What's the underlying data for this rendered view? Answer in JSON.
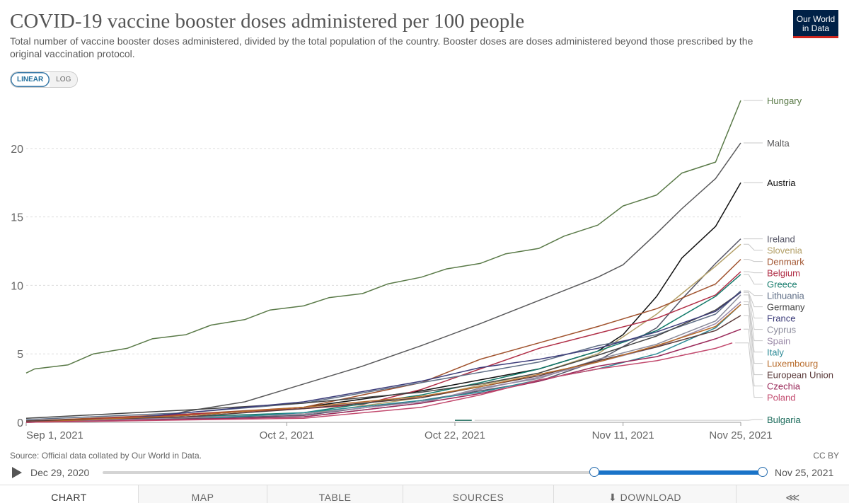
{
  "header": {
    "title": "COVID-19 vaccine booster doses administered per 100 people",
    "subtitle": "Total number of vaccine booster doses administered, divided by the total population of the country. Booster doses are doses administered beyond those prescribed by the original vaccination protocol.",
    "logo_line1": "Our World",
    "logo_line2": "in Data"
  },
  "scale_toggle": {
    "linear": "LINEAR",
    "log": "LOG",
    "selected": "LINEAR"
  },
  "footer": {
    "source": "Source: Official data collated by Our World in Data.",
    "license": "CC BY"
  },
  "timeline": {
    "start_date": "Dec 29, 2020",
    "end_date": "Nov 25, 2021",
    "range_start_fraction": 0.745,
    "range_end_fraction": 1.0
  },
  "tabs": [
    "CHART",
    "MAP",
    "TABLE",
    "SOURCES",
    "DOWNLOAD",
    ""
  ],
  "colors": {
    "accent": "#1a73c8",
    "logo_bg": "#002147",
    "logo_bar": "#ce261e"
  },
  "chart_data": {
    "type": "line",
    "xlabel": "",
    "ylabel": "",
    "x_ticks": [
      "Sep 1, 2021",
      "Oct 2, 2021",
      "Oct 22, 2021",
      "Nov 11, 2021",
      "Nov 25, 2021"
    ],
    "x_tick_days": [
      0,
      31,
      51,
      71,
      85
    ],
    "y_ticks": [
      0,
      5,
      10,
      15,
      20
    ],
    "ylim": [
      0,
      23.5
    ],
    "grid": "horizontal dashed",
    "legend": "right, labels at line ends",
    "series": [
      {
        "name": "Hungary",
        "color": "#5a7a48",
        "points": [
          [
            "Sep 1, 2021",
            3.6
          ],
          [
            "Sep 2, 2021",
            3.9
          ],
          [
            "Sep 6, 2021",
            4.2
          ],
          [
            "Sep 9, 2021",
            5.0
          ],
          [
            "Sep 13, 2021",
            5.4
          ],
          [
            "Sep 16, 2021",
            6.1
          ],
          [
            "Sep 20, 2021",
            6.4
          ],
          [
            "Sep 23, 2021",
            7.1
          ],
          [
            "Sep 27, 2021",
            7.5
          ],
          [
            "Sep 30, 2021",
            8.2
          ],
          [
            "Oct 4, 2021",
            8.5
          ],
          [
            "Oct 7, 2021",
            9.1
          ],
          [
            "Oct 11, 2021",
            9.4
          ],
          [
            "Oct 14, 2021",
            10.1
          ],
          [
            "Oct 18, 2021",
            10.6
          ],
          [
            "Oct 21, 2021",
            11.2
          ],
          [
            "Oct 25, 2021",
            11.6
          ],
          [
            "Oct 28, 2021",
            12.3
          ],
          [
            "Nov 1, 2021",
            12.7
          ],
          [
            "Nov 4, 2021",
            13.6
          ],
          [
            "Nov 8, 2021",
            14.4
          ],
          [
            "Nov 11, 2021",
            15.8
          ],
          [
            "Nov 15, 2021",
            16.6
          ],
          [
            "Nov 18, 2021",
            18.2
          ],
          [
            "Nov 22, 2021",
            19.0
          ],
          [
            "Nov 25, 2021",
            23.5
          ]
        ]
      },
      {
        "name": "Malta",
        "color": "#58585a",
        "points": [
          [
            "Sep 1, 2021",
            0.1
          ],
          [
            "Sep 16, 2021",
            0.3
          ],
          [
            "Sep 20, 2021",
            0.8
          ],
          [
            "Sep 27, 2021",
            1.5
          ],
          [
            "Oct 4, 2021",
            2.8
          ],
          [
            "Oct 11, 2021",
            4.1
          ],
          [
            "Oct 18, 2021",
            5.6
          ],
          [
            "Oct 25, 2021",
            7.2
          ],
          [
            "Nov 1, 2021",
            8.9
          ],
          [
            "Nov 8, 2021",
            10.6
          ],
          [
            "Nov 11, 2021",
            11.5
          ],
          [
            "Nov 15, 2021",
            13.8
          ],
          [
            "Nov 18, 2021",
            15.6
          ],
          [
            "Nov 22, 2021",
            17.8
          ],
          [
            "Nov 25, 2021",
            20.4
          ]
        ]
      },
      {
        "name": "Austria",
        "color": "#111111",
        "points": [
          [
            "Sep 1, 2021",
            0.1
          ],
          [
            "Sep 20, 2021",
            0.5
          ],
          [
            "Oct 4, 2021",
            1.1
          ],
          [
            "Oct 18, 2021",
            2.3
          ],
          [
            "Oct 25, 2021",
            3.1
          ],
          [
            "Nov 1, 2021",
            3.9
          ],
          [
            "Nov 8, 2021",
            5.2
          ],
          [
            "Nov 11, 2021",
            6.4
          ],
          [
            "Nov 15, 2021",
            9.2
          ],
          [
            "Nov 18, 2021",
            12.0
          ],
          [
            "Nov 22, 2021",
            14.3
          ],
          [
            "Nov 25, 2021",
            17.5
          ]
        ]
      },
      {
        "name": "Ireland",
        "color": "#555566",
        "points": [
          [
            "Sep 1, 2021",
            0.0
          ],
          [
            "Oct 4, 2021",
            0.5
          ],
          [
            "Oct 18, 2021",
            1.6
          ],
          [
            "Nov 1, 2021",
            3.0
          ],
          [
            "Nov 8, 2021",
            4.5
          ],
          [
            "Nov 15, 2021",
            6.9
          ],
          [
            "Nov 18, 2021",
            9.0
          ],
          [
            "Nov 22, 2021",
            11.6
          ],
          [
            "Nov 25, 2021",
            13.4
          ]
        ]
      },
      {
        "name": "Slovenia",
        "color": "#b3a068",
        "points": [
          [
            "Sep 1, 2021",
            0.0
          ],
          [
            "Oct 4, 2021",
            0.6
          ],
          [
            "Oct 18, 2021",
            1.8
          ],
          [
            "Nov 1, 2021",
            3.6
          ],
          [
            "Nov 8, 2021",
            5.0
          ],
          [
            "Nov 15, 2021",
            7.9
          ],
          [
            "Nov 18, 2021",
            9.4
          ],
          [
            "Nov 22, 2021",
            11.4
          ],
          [
            "Nov 25, 2021",
            13.0
          ]
        ]
      },
      {
        "name": "Denmark",
        "color": "#a0522d",
        "points": [
          [
            "Sep 1, 2021",
            0.1
          ],
          [
            "Sep 20, 2021",
            0.6
          ],
          [
            "Oct 4, 2021",
            1.1
          ],
          [
            "Oct 18, 2021",
            2.9
          ],
          [
            "Oct 25, 2021",
            4.6
          ],
          [
            "Nov 1, 2021",
            5.8
          ],
          [
            "Nov 8, 2021",
            7.0
          ],
          [
            "Nov 15, 2021",
            8.3
          ],
          [
            "Nov 22, 2021",
            10.1
          ],
          [
            "Nov 25, 2021",
            11.9
          ]
        ]
      },
      {
        "name": "Belgium",
        "color": "#b02e46",
        "points": [
          [
            "Sep 1, 2021",
            0.0
          ],
          [
            "Oct 4, 2021",
            1.0
          ],
          [
            "Oct 11, 2021",
            1.3
          ],
          [
            "Oct 18, 2021",
            2.4
          ],
          [
            "Oct 25, 2021",
            3.9
          ],
          [
            "Nov 1, 2021",
            5.4
          ],
          [
            "Nov 8, 2021",
            6.5
          ],
          [
            "Nov 15, 2021",
            7.6
          ],
          [
            "Nov 22, 2021",
            9.3
          ],
          [
            "Nov 25, 2021",
            11.0
          ]
        ]
      },
      {
        "name": "Greece",
        "color": "#127a6a",
        "points": [
          [
            "Sep 1, 2021",
            0.0
          ],
          [
            "Oct 4, 2021",
            0.7
          ],
          [
            "Oct 18, 2021",
            2.0
          ],
          [
            "Oct 25, 2021",
            2.9
          ],
          [
            "Nov 1, 2021",
            3.9
          ],
          [
            "Nov 8, 2021",
            5.2
          ],
          [
            "Nov 15, 2021",
            6.7
          ],
          [
            "Nov 22, 2021",
            9.2
          ],
          [
            "Nov 25, 2021",
            10.8
          ]
        ]
      },
      {
        "name": "Lithuania",
        "color": "#5f6e86",
        "points": [
          [
            "Sep 1, 2021",
            0.2
          ],
          [
            "Sep 20, 2021",
            0.7
          ],
          [
            "Oct 4, 2021",
            1.4
          ],
          [
            "Oct 18, 2021",
            2.9
          ],
          [
            "Nov 1, 2021",
            4.4
          ],
          [
            "Nov 8, 2021",
            5.6
          ],
          [
            "Nov 15, 2021",
            6.4
          ],
          [
            "Nov 22, 2021",
            7.9
          ],
          [
            "Nov 25, 2021",
            9.6
          ]
        ]
      },
      {
        "name": "Germany",
        "color": "#444444",
        "points": [
          [
            "Sep 1, 2021",
            0.3
          ],
          [
            "Sep 20, 2021",
            0.9
          ],
          [
            "Oct 4, 2021",
            1.4
          ],
          [
            "Oct 18, 2021",
            2.2
          ],
          [
            "Oct 25, 2021",
            2.8
          ],
          [
            "Nov 1, 2021",
            3.6
          ],
          [
            "Nov 8, 2021",
            4.9
          ],
          [
            "Nov 15, 2021",
            6.3
          ],
          [
            "Nov 22, 2021",
            8.2
          ],
          [
            "Nov 25, 2021",
            9.5
          ]
        ]
      },
      {
        "name": "Cyprus",
        "color": "#8a8a9a",
        "points": [
          [
            "Sep 1, 2021",
            0.0
          ],
          [
            "Oct 4, 2021",
            0.4
          ],
          [
            "Oct 18, 2021",
            1.4
          ],
          [
            "Oct 25, 2021",
            2.5
          ],
          [
            "Nov 1, 2021",
            3.2
          ],
          [
            "Nov 8, 2021",
            4.6
          ],
          [
            "Nov 15, 2021",
            5.7
          ],
          [
            "Nov 22, 2021",
            7.4
          ],
          [
            "Nov 25, 2021",
            9.3
          ]
        ]
      },
      {
        "name": "France",
        "color": "#3c3c7a",
        "points": [
          [
            "Sep 1, 2021",
            0.0
          ],
          [
            "Sep 13, 2021",
            0.3
          ],
          [
            "Oct 4, 2021",
            1.5
          ],
          [
            "Oct 18, 2021",
            3.0
          ],
          [
            "Oct 25, 2021",
            4.0
          ],
          [
            "Nov 1, 2021",
            4.6
          ],
          [
            "Nov 8, 2021",
            5.4
          ],
          [
            "Nov 15, 2021",
            6.6
          ],
          [
            "Nov 22, 2021",
            8.1
          ],
          [
            "Nov 25, 2021",
            9.5
          ]
        ]
      },
      {
        "name": "Spain",
        "color": "#9b8aa8",
        "points": [
          [
            "Sep 1, 2021",
            0.0
          ],
          [
            "Oct 4, 2021",
            0.6
          ],
          [
            "Oct 18, 2021",
            1.5
          ],
          [
            "Oct 25, 2021",
            2.4
          ],
          [
            "Nov 1, 2021",
            3.3
          ],
          [
            "Nov 8, 2021",
            4.4
          ],
          [
            "Nov 15, 2021",
            5.5
          ],
          [
            "Nov 22, 2021",
            7.2
          ],
          [
            "Nov 25, 2021",
            8.8
          ]
        ]
      },
      {
        "name": "Italy",
        "color": "#2c8a96",
        "points": [
          [
            "Sep 1, 2021",
            0.0
          ],
          [
            "Sep 20, 2021",
            0.2
          ],
          [
            "Oct 4, 2021",
            0.7
          ],
          [
            "Oct 18, 2021",
            1.6
          ],
          [
            "Oct 25, 2021",
            2.2
          ],
          [
            "Nov 1, 2021",
            3.1
          ],
          [
            "Nov 8, 2021",
            3.9
          ],
          [
            "Nov 15, 2021",
            5.0
          ],
          [
            "Nov 22, 2021",
            6.9
          ],
          [
            "Nov 25, 2021",
            8.6
          ]
        ]
      },
      {
        "name": "European Union",
        "color": "#5a3a3a",
        "points": [
          [
            "Sep 1, 2021",
            0.1
          ],
          [
            "Sep 20, 2021",
            0.4
          ],
          [
            "Oct 4, 2021",
            1.0
          ],
          [
            "Oct 18, 2021",
            1.8
          ],
          [
            "Oct 25, 2021",
            2.6
          ],
          [
            "Nov 1, 2021",
            3.4
          ],
          [
            "Nov 8, 2021",
            4.5
          ],
          [
            "Nov 15, 2021",
            5.5
          ],
          [
            "Nov 22, 2021",
            6.7
          ],
          [
            "Nov 25, 2021",
            7.8
          ]
        ]
      },
      {
        "name": "Luxembourg",
        "color": "#b86b2a",
        "points": [
          [
            "Sep 1, 2021",
            0.0
          ],
          [
            "Sep 20, 2021",
            0.5
          ],
          [
            "Oct 4, 2021",
            1.1
          ],
          [
            "Oct 18, 2021",
            1.9
          ],
          [
            "Oct 25, 2021",
            2.6
          ],
          [
            "Nov 1, 2021",
            3.5
          ],
          [
            "Nov 8, 2021",
            4.4
          ],
          [
            "Nov 15, 2021",
            5.6
          ],
          [
            "Nov 22, 2021",
            7.0
          ],
          [
            "Nov 25, 2021",
            8.6
          ]
        ]
      },
      {
        "name": "Czechia",
        "color": "#9a2a5a",
        "points": [
          [
            "Sep 1, 2021",
            0.0
          ],
          [
            "Oct 4, 2021",
            0.4
          ],
          [
            "Oct 18, 2021",
            1.4
          ],
          [
            "Oct 25, 2021",
            2.1
          ],
          [
            "Nov 1, 2021",
            3.0
          ],
          [
            "Nov 8, 2021",
            4.1
          ],
          [
            "Nov 15, 2021",
            4.8
          ],
          [
            "Nov 22, 2021",
            6.1
          ],
          [
            "Nov 25, 2021",
            6.8
          ]
        ]
      },
      {
        "name": "Poland",
        "color": "#c24a6e",
        "points": [
          [
            "Sep 1, 2021",
            0.0
          ],
          [
            "Oct 4, 2021",
            0.3
          ],
          [
            "Oct 18, 2021",
            1.1
          ],
          [
            "Oct 25, 2021",
            2.0
          ],
          [
            "Nov 1, 2021",
            3.1
          ],
          [
            "Nov 8, 2021",
            3.9
          ],
          [
            "Nov 15, 2021",
            4.5
          ],
          [
            "Nov 22, 2021",
            5.4
          ],
          [
            "Nov 24, 2021",
            5.8
          ]
        ]
      },
      {
        "name": "Bulgaria",
        "color": "#1a6a5a",
        "points": [
          [
            "Oct 22, 2021",
            0.15
          ],
          [
            "Oct 24, 2021",
            0.15
          ]
        ]
      }
    ]
  }
}
